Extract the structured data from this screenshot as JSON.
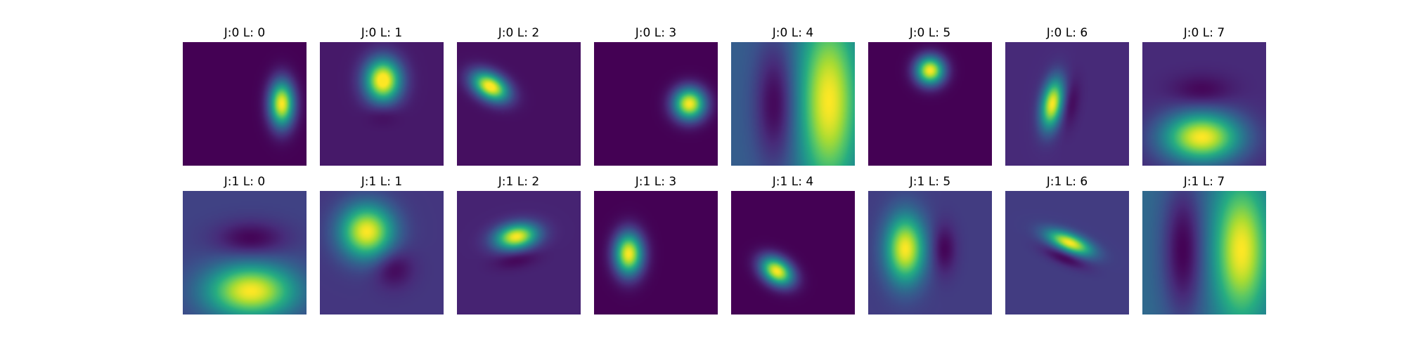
{
  "chart_data": {
    "type": "heatmap",
    "colormap": "viridis",
    "grid": "off",
    "axes": "hidden",
    "rows": 2,
    "cols": 8,
    "panels": [
      {
        "title": "J:0 L: 0",
        "bg": 0.0,
        "blobs": [
          {
            "cx": 0.8,
            "cy": 0.5,
            "sx": 0.07,
            "sy": 0.13,
            "rot": 0,
            "amp": 1.0
          }
        ]
      },
      {
        "title": "J:0 L: 1",
        "bg": 0.07,
        "blobs": [
          {
            "cx": 0.51,
            "cy": 0.31,
            "sx": 0.1,
            "sy": 0.12,
            "rot": 0,
            "amp": 1.0
          },
          {
            "cx": 0.51,
            "cy": 0.58,
            "sx": 0.09,
            "sy": 0.06,
            "rot": 0,
            "amp": -0.07
          }
        ]
      },
      {
        "title": "J:0 L: 2",
        "bg": 0.04,
        "blobs": [
          {
            "cx": 0.27,
            "cy": 0.36,
            "sx": 0.11,
            "sy": 0.07,
            "rot": 30,
            "amp": 1.0
          }
        ]
      },
      {
        "title": "J:0 L: 3",
        "bg": 0.0,
        "blobs": [
          {
            "cx": 0.77,
            "cy": 0.5,
            "sx": 0.09,
            "sy": 0.09,
            "rot": 0,
            "amp": 1.0
          }
        ]
      },
      {
        "title": "J:0 L: 4",
        "bg": 0.3,
        "blobs": [
          {
            "cx": 0.79,
            "cy": 0.48,
            "sx": 0.17,
            "sy": 0.5,
            "rot": 0,
            "amp": 0.7
          },
          {
            "cx": 0.36,
            "cy": 0.5,
            "sx": 0.12,
            "sy": 0.35,
            "rot": 0,
            "amp": -0.3
          }
        ]
      },
      {
        "title": "J:0 L: 5",
        "bg": 0.0,
        "blobs": [
          {
            "cx": 0.5,
            "cy": 0.23,
            "sx": 0.08,
            "sy": 0.08,
            "rot": 0,
            "amp": 1.0
          }
        ]
      },
      {
        "title": "J:0 L: 6",
        "bg": 0.12,
        "blobs": [
          {
            "cx": 0.38,
            "cy": 0.5,
            "sx": 0.06,
            "sy": 0.14,
            "rot": 10,
            "amp": 0.88
          },
          {
            "cx": 0.52,
            "cy": 0.5,
            "sx": 0.05,
            "sy": 0.13,
            "rot": 10,
            "amp": -0.12
          }
        ]
      },
      {
        "title": "J:0 L: 7",
        "bg": 0.12,
        "blobs": [
          {
            "cx": 0.48,
            "cy": 0.77,
            "sx": 0.22,
            "sy": 0.14,
            "rot": 0,
            "amp": 0.88
          },
          {
            "cx": 0.48,
            "cy": 0.4,
            "sx": 0.17,
            "sy": 0.09,
            "rot": 0,
            "amp": -0.12
          }
        ]
      },
      {
        "title": "J:1 L: 0",
        "bg": 0.2,
        "blobs": [
          {
            "cx": 0.55,
            "cy": 0.81,
            "sx": 0.25,
            "sy": 0.15,
            "rot": 0,
            "amp": 0.8
          },
          {
            "cx": 0.55,
            "cy": 0.39,
            "sx": 0.2,
            "sy": 0.1,
            "rot": 0,
            "amp": -0.2
          }
        ]
      },
      {
        "title": "J:1 L: 1",
        "bg": 0.16,
        "blobs": [
          {
            "cx": 0.38,
            "cy": 0.33,
            "sx": 0.15,
            "sy": 0.15,
            "rot": 0,
            "amp": 0.84
          },
          {
            "cx": 0.59,
            "cy": 0.62,
            "sx": 0.11,
            "sy": 0.11,
            "rot": 0,
            "amp": -0.16
          }
        ]
      },
      {
        "title": "J:1 L: 2",
        "bg": 0.1,
        "blobs": [
          {
            "cx": 0.48,
            "cy": 0.37,
            "sx": 0.12,
            "sy": 0.07,
            "rot": -10,
            "amp": 0.9
          },
          {
            "cx": 0.48,
            "cy": 0.55,
            "sx": 0.12,
            "sy": 0.05,
            "rot": -10,
            "amp": -0.1
          }
        ]
      },
      {
        "title": "J:1 L: 3",
        "bg": 0.0,
        "blobs": [
          {
            "cx": 0.28,
            "cy": 0.51,
            "sx": 0.08,
            "sy": 0.12,
            "rot": 0,
            "amp": 1.0
          }
        ]
      },
      {
        "title": "J:1 L: 4",
        "bg": 0.0,
        "blobs": [
          {
            "cx": 0.37,
            "cy": 0.65,
            "sx": 0.1,
            "sy": 0.07,
            "rot": 35,
            "amp": 1.0
          }
        ]
      },
      {
        "title": "J:1 L: 5",
        "bg": 0.18,
        "blobs": [
          {
            "cx": 0.3,
            "cy": 0.47,
            "sx": 0.11,
            "sy": 0.19,
            "rot": 0,
            "amp": 0.82
          },
          {
            "cx": 0.61,
            "cy": 0.47,
            "sx": 0.07,
            "sy": 0.14,
            "rot": 0,
            "amp": -0.18
          }
        ]
      },
      {
        "title": "J:1 L: 6",
        "bg": 0.18,
        "blobs": [
          {
            "cx": 0.52,
            "cy": 0.42,
            "sx": 0.13,
            "sy": 0.05,
            "rot": 22,
            "amp": 0.82
          },
          {
            "cx": 0.48,
            "cy": 0.54,
            "sx": 0.13,
            "sy": 0.04,
            "rot": 22,
            "amp": -0.18
          }
        ]
      },
      {
        "title": "J:1 L: 7",
        "bg": 0.35,
        "blobs": [
          {
            "cx": 0.8,
            "cy": 0.48,
            "sx": 0.15,
            "sy": 0.38,
            "rot": 0,
            "amp": 0.65
          },
          {
            "cx": 0.33,
            "cy": 0.48,
            "sx": 0.12,
            "sy": 0.4,
            "rot": 0,
            "amp": -0.35
          }
        ]
      }
    ]
  }
}
